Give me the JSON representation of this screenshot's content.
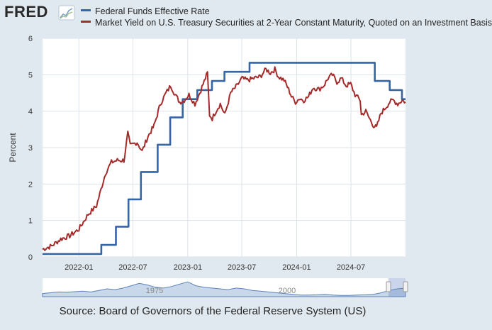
{
  "logo": {
    "text": "FRED"
  },
  "legend": [
    {
      "label": "Federal Funds Effective Rate",
      "color": "#3465a4"
    },
    {
      "label": "Market Yield on U.S. Treasury Securities at 2-Year Constant Maturity, Quoted on an Investment Basis",
      "color": "#a52a2a"
    }
  ],
  "source": "Source: Board of Governors of the Federal Reserve System (US)",
  "navigator_labels": [
    "1975",
    "2000"
  ],
  "chart_data": {
    "type": "line",
    "ylabel": "Percent",
    "ylim": [
      0,
      6
    ],
    "yticks": [
      0,
      1,
      2,
      3,
      4,
      5,
      6
    ],
    "xlim": [
      "2021-09-01",
      "2024-12-31"
    ],
    "xticks": [
      "2022-01",
      "2022-07",
      "2023-01",
      "2023-07",
      "2024-01",
      "2024-07"
    ],
    "grid": true,
    "series": [
      {
        "name": "Federal Funds Effective Rate",
        "color": "#3465a4",
        "step": true,
        "points": [
          [
            "2021-09-01",
            0.08
          ],
          [
            "2022-03-17",
            0.33
          ],
          [
            "2022-05-05",
            0.83
          ],
          [
            "2022-06-16",
            1.58
          ],
          [
            "2022-07-28",
            2.33
          ],
          [
            "2022-09-22",
            3.08
          ],
          [
            "2022-11-03",
            3.83
          ],
          [
            "2022-12-15",
            4.33
          ],
          [
            "2023-02-02",
            4.58
          ],
          [
            "2023-03-23",
            4.83
          ],
          [
            "2023-05-04",
            5.08
          ],
          [
            "2023-07-27",
            5.33
          ],
          [
            "2024-09-19",
            4.83
          ],
          [
            "2024-11-08",
            4.58
          ],
          [
            "2024-12-19",
            4.33
          ],
          [
            "2024-12-31",
            4.33
          ]
        ]
      },
      {
        "name": "Market Yield on U.S. Treasury Securities at 2-Year Constant Maturity, Quoted on an Investment Basis",
        "color": "#a52a2a",
        "step": false,
        "points": [
          [
            "2021-09-01",
            0.21
          ],
          [
            "2021-10-01",
            0.3
          ],
          [
            "2021-11-01",
            0.49
          ],
          [
            "2021-12-01",
            0.58
          ],
          [
            "2022-01-01",
            0.76
          ],
          [
            "2022-02-01",
            1.17
          ],
          [
            "2022-03-01",
            1.4
          ],
          [
            "2022-03-31",
            2.3
          ],
          [
            "2022-04-20",
            2.6
          ],
          [
            "2022-05-10",
            2.65
          ],
          [
            "2022-06-01",
            2.65
          ],
          [
            "2022-06-14",
            3.4
          ],
          [
            "2022-06-22",
            3.05
          ],
          [
            "2022-07-15",
            3.15
          ],
          [
            "2022-08-01",
            2.9
          ],
          [
            "2022-08-20",
            3.3
          ],
          [
            "2022-09-10",
            3.6
          ],
          [
            "2022-10-01",
            4.2
          ],
          [
            "2022-10-20",
            4.5
          ],
          [
            "2022-11-05",
            4.7
          ],
          [
            "2022-11-20",
            4.45
          ],
          [
            "2022-12-05",
            4.25
          ],
          [
            "2022-12-20",
            4.3
          ],
          [
            "2023-01-05",
            4.45
          ],
          [
            "2023-01-25",
            4.2
          ],
          [
            "2023-02-10",
            4.5
          ],
          [
            "2023-03-01",
            4.9
          ],
          [
            "2023-03-08",
            5.05
          ],
          [
            "2023-03-15",
            3.9
          ],
          [
            "2023-03-24",
            3.8
          ],
          [
            "2023-04-05",
            4.0
          ],
          [
            "2023-04-20",
            4.2
          ],
          [
            "2023-05-05",
            3.9
          ],
          [
            "2023-05-25",
            4.5
          ],
          [
            "2023-06-15",
            4.7
          ],
          [
            "2023-07-01",
            4.9
          ],
          [
            "2023-07-20",
            4.85
          ],
          [
            "2023-08-10",
            4.9
          ],
          [
            "2023-09-01",
            4.95
          ],
          [
            "2023-09-20",
            5.15
          ],
          [
            "2023-10-05",
            5.05
          ],
          [
            "2023-10-20",
            5.15
          ],
          [
            "2023-11-01",
            4.95
          ],
          [
            "2023-11-20",
            4.85
          ],
          [
            "2023-12-05",
            4.6
          ],
          [
            "2023-12-15",
            4.4
          ],
          [
            "2023-12-28",
            4.25
          ],
          [
            "2024-01-10",
            4.35
          ],
          [
            "2024-01-25",
            4.3
          ],
          [
            "2024-02-10",
            4.4
          ],
          [
            "2024-02-25",
            4.65
          ],
          [
            "2024-03-15",
            4.6
          ],
          [
            "2024-04-01",
            4.7
          ],
          [
            "2024-04-15",
            4.9
          ],
          [
            "2024-04-30",
            5.0
          ],
          [
            "2024-05-15",
            4.8
          ],
          [
            "2024-05-30",
            4.9
          ],
          [
            "2024-06-15",
            4.7
          ],
          [
            "2024-06-30",
            4.75
          ],
          [
            "2024-07-15",
            4.45
          ],
          [
            "2024-08-01",
            4.3
          ],
          [
            "2024-08-05",
            3.9
          ],
          [
            "2024-08-20",
            4.0
          ],
          [
            "2024-09-01",
            3.8
          ],
          [
            "2024-09-15",
            3.6
          ],
          [
            "2024-09-25",
            3.55
          ],
          [
            "2024-10-10",
            3.95
          ],
          [
            "2024-10-25",
            4.1
          ],
          [
            "2024-11-08",
            4.25
          ],
          [
            "2024-11-20",
            4.3
          ],
          [
            "2024-12-05",
            4.2
          ],
          [
            "2024-12-20",
            4.3
          ],
          [
            "2024-12-31",
            4.25
          ]
        ]
      }
    ]
  }
}
